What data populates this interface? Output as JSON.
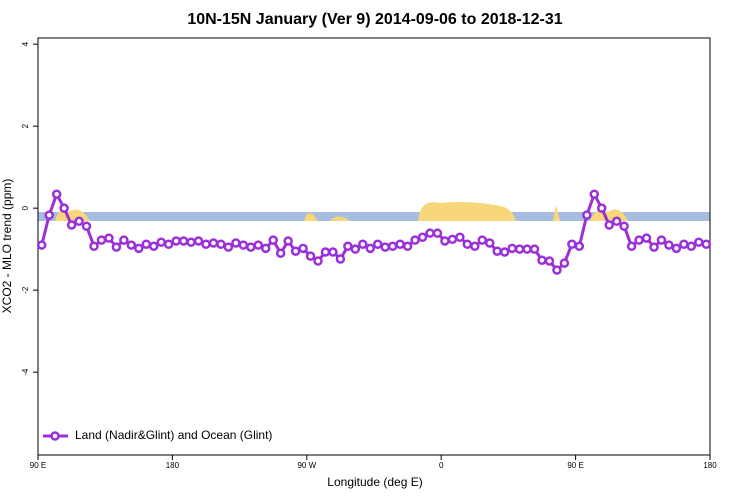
{
  "chart_data": {
    "type": "line",
    "title": "10N-15N January (Ver 9)   2014-09-06 to 2018-12-31",
    "x_label": "Longitude (deg E)",
    "y_label": "XCO2 - MLO trend (ppm)",
    "x": [
      92.5,
      97.5,
      102.5,
      107.5,
      112.5,
      117.5,
      122.5,
      127.5,
      132.5,
      137.5,
      142.5,
      147.5,
      152.5,
      157.5,
      162.5,
      167.5,
      172.5,
      177.5,
      182.5,
      187.5,
      192.5,
      197.5,
      202.5,
      207.5,
      212.5,
      217.5,
      222.5,
      227.5,
      232.5,
      237.5,
      242.5,
      247.5,
      252.5,
      257.5,
      262.5,
      267.5,
      272.5,
      277.5,
      282.5,
      287.5,
      292.5,
      297.5,
      302.5,
      307.5,
      312.5,
      317.5,
      322.5,
      327.5,
      332.5,
      337.5,
      342.5,
      347.5,
      352.5,
      357.5,
      362.5,
      367.5,
      372.5,
      377.5,
      382.5,
      387.5,
      392.5,
      397.5,
      402.5,
      407.5,
      412.5,
      417.5,
      422.5,
      427.5,
      432.5,
      437.5,
      442.5,
      447.5,
      452.5,
      457.5,
      462.5,
      467.5,
      472.5,
      477.5,
      482.5,
      487.5,
      492.5,
      497.5,
      502.5,
      507.5,
      512.5,
      517.5,
      522.5,
      527.5,
      532.5,
      537.5
    ],
    "series": [
      {
        "name": "Land (Nadir&Glint) and Ocean (Glint)",
        "color": "#9b30d9",
        "values": [
          -0.9,
          -0.17,
          0.34,
          0,
          -0.41,
          -0.32,
          -0.44,
          -0.93,
          -0.78,
          -0.73,
          -0.95,
          -0.78,
          -0.9,
          -0.98,
          -0.88,
          -0.93,
          -0.83,
          -0.88,
          -0.8,
          -0.8,
          -0.83,
          -0.8,
          -0.88,
          -0.85,
          -0.88,
          -0.95,
          -0.85,
          -0.9,
          -0.95,
          -0.9,
          -0.98,
          -0.78,
          -1.1,
          -0.8,
          -1.05,
          -0.98,
          -1.17,
          -1.29,
          -1.07,
          -1.07,
          -1.24,
          -0.93,
          -1.0,
          -0.88,
          -0.98,
          -0.88,
          -0.95,
          -0.93,
          -0.88,
          -0.93,
          -0.78,
          -0.71,
          -0.61,
          -0.61,
          -0.8,
          -0.76,
          -0.71,
          -0.88,
          -0.93,
          -0.78,
          -0.85,
          -1.05,
          -1.07,
          -0.98,
          -1.0,
          -1.0,
          -1.0,
          -1.27,
          -1.29,
          -1.51,
          -1.34,
          -0.88,
          -0.93,
          -0.17,
          0.34,
          0,
          -0.41,
          -0.32,
          -0.44,
          -0.93,
          -0.78,
          -0.73,
          -0.95,
          -0.78,
          -0.9,
          -0.98,
          -0.88,
          -0.93,
          -0.83,
          -0.88
        ]
      }
    ],
    "xlim": [
      90,
      540
    ],
    "xticks": [
      {
        "value": 90,
        "label": "90 E"
      },
      {
        "value": 180,
        "label": "180"
      },
      {
        "value": 270,
        "label": "90 W"
      },
      {
        "value": 360,
        "label": "0"
      },
      {
        "value": 450,
        "label": "90 E"
      },
      {
        "value": 540,
        "label": "180"
      }
    ],
    "ylim": [
      -6.02,
      4.15
    ],
    "yticks": [
      -4,
      -2,
      0,
      2,
      4
    ],
    "legend": "bottom-left"
  }
}
